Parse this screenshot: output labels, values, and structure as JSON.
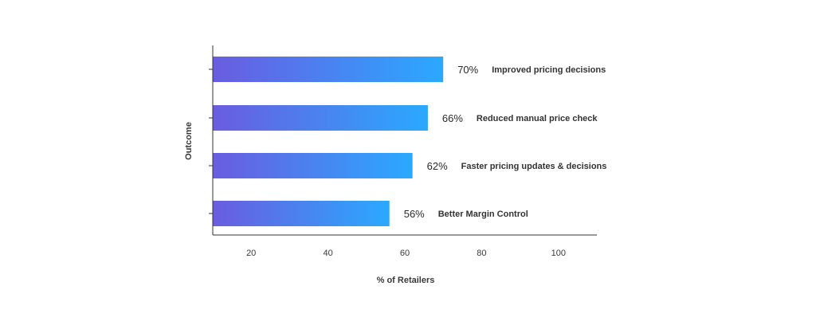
{
  "chart_data": {
    "type": "bar",
    "orientation": "horizontal",
    "categories": [
      "Improved pricing decisions",
      "Reduced manual price check",
      "Faster pricing updates & decisions",
      "Better Margin Control"
    ],
    "values": [
      70,
      66,
      62,
      56
    ],
    "value_labels": [
      "70%",
      "66%",
      "62%",
      "56%"
    ],
    "xlabel": "% of Retailers",
    "ylabel": "Outcome",
    "xlim": [
      10,
      110
    ],
    "x_ticks": [
      20,
      40,
      60,
      80,
      100
    ],
    "grid": false,
    "colors": {
      "bar_start": "#6a5ce0",
      "bar_end": "#2aa9ff",
      "axis": "#333333"
    }
  }
}
